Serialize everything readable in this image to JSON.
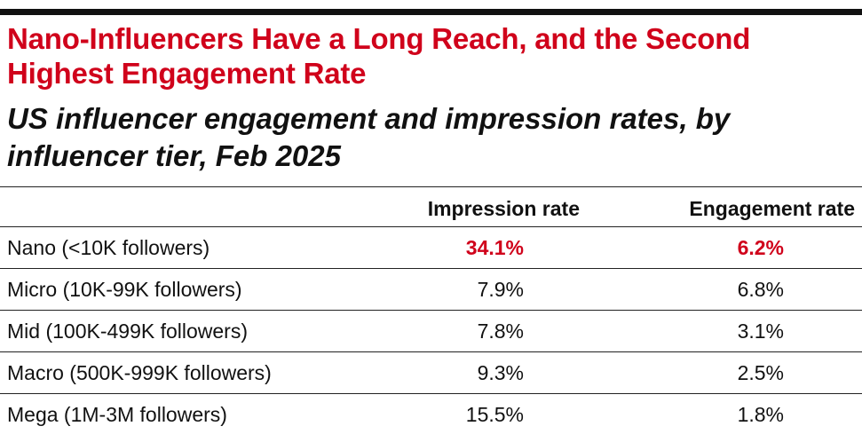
{
  "title": "Nano-Influencers Have a Long Reach, and the Second Highest Engagement Rate",
  "subtitle": "US influencer engagement and impression rates, by influencer tier, Feb 2025",
  "colors": {
    "accent": "#d0021b",
    "text": "#111111",
    "rule": "#111111"
  },
  "chart_data": {
    "type": "table",
    "title": "Nano-Influencers Have a Long Reach, and the Second Highest Engagement Rate",
    "subtitle": "US influencer engagement and impression rates, by influencer tier, Feb 2025",
    "columns": [
      "",
      "Impression rate",
      "Engagement rate"
    ],
    "rows": [
      {
        "label": "Nano (<10K followers)",
        "impression": "34.1%",
        "engagement": "6.2%",
        "highlight": true
      },
      {
        "label": "Micro (10K-99K followers)",
        "impression": "7.9%",
        "engagement": "6.8%",
        "highlight": false
      },
      {
        "label": "Mid (100K-499K followers)",
        "impression": "7.8%",
        "engagement": "3.1%",
        "highlight": false
      },
      {
        "label": "Macro (500K-999K followers)",
        "impression": "9.3%",
        "engagement": "2.5%",
        "highlight": false
      },
      {
        "label": "Mega (1M-3M followers)",
        "impression": "15.5%",
        "engagement": "1.8%",
        "highlight": false
      }
    ]
  }
}
